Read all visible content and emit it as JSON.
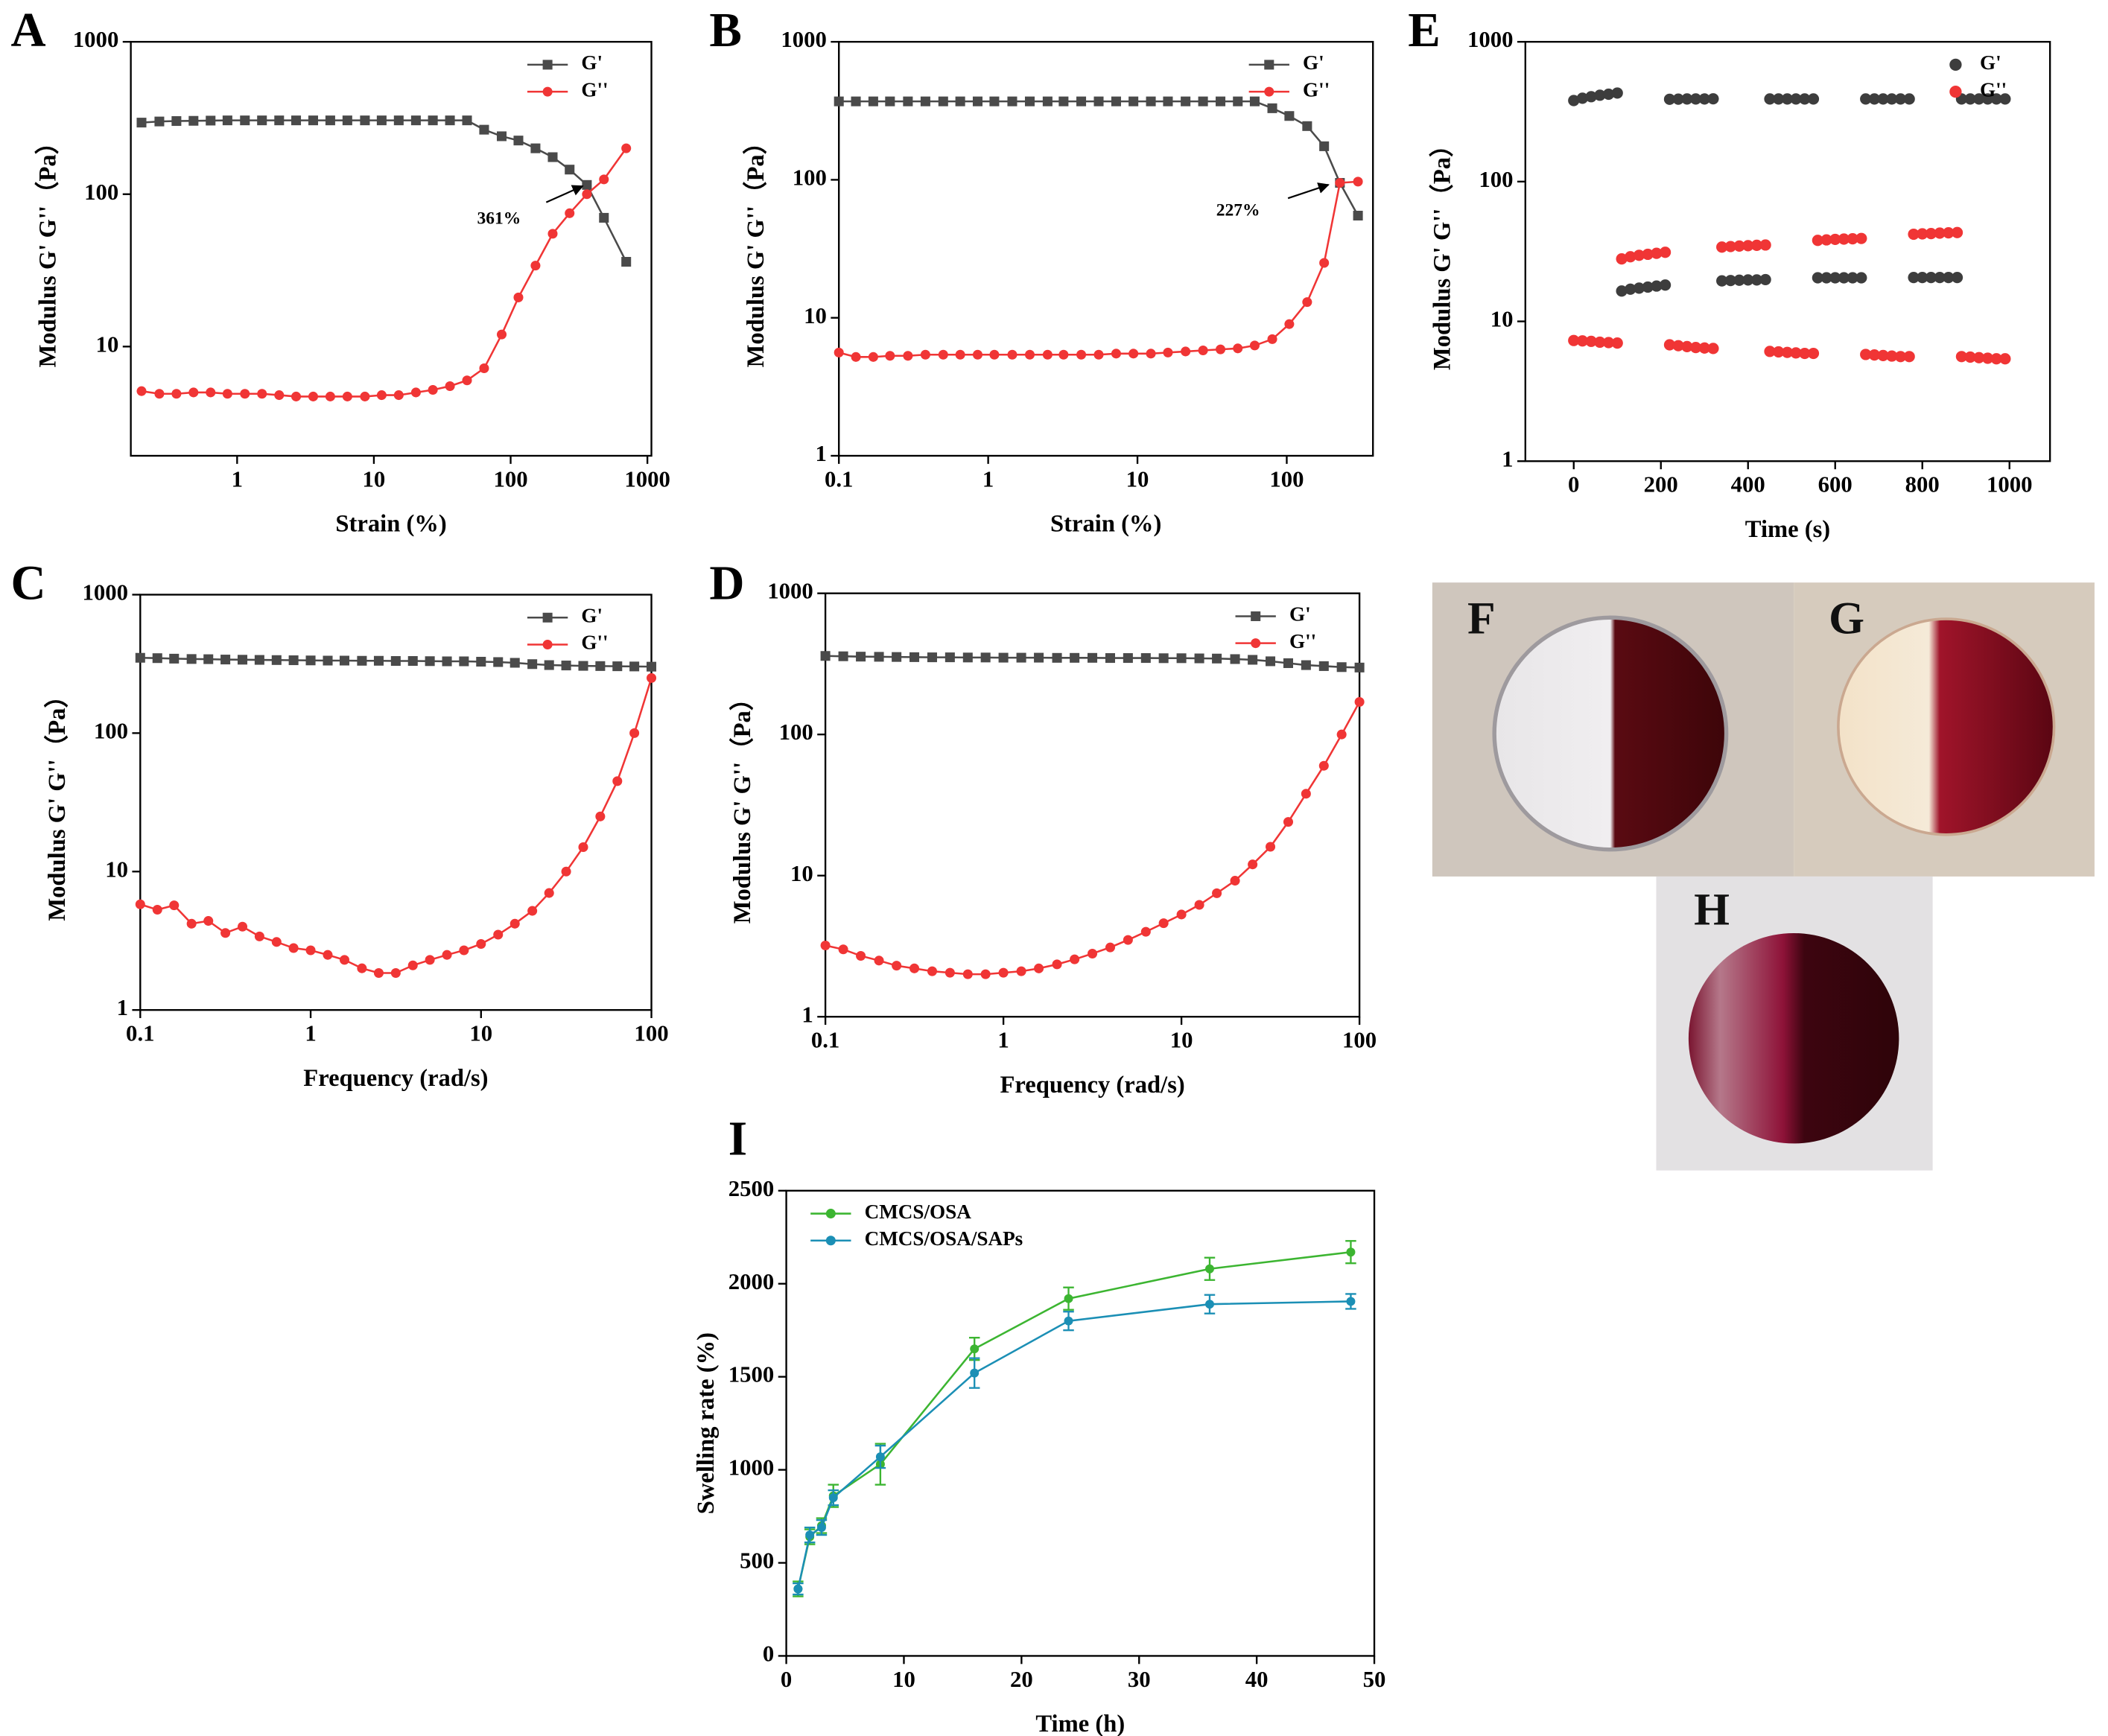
{
  "chart_data": [
    {
      "type": "line",
      "panel_label": "A",
      "x_label": "Strain (%)",
      "y_label": "Modulus G' G''（Pa）",
      "xscale": "log",
      "yscale": "log",
      "xlim": [
        0.167,
        1070
      ],
      "ylim": [
        1.92,
        1000
      ],
      "xticks": [
        1,
        10,
        100,
        1000
      ],
      "yticks": [
        10,
        100,
        1000
      ],
      "legend": "upper right",
      "x": [
        0.2,
        0.27,
        0.36,
        0.48,
        0.64,
        0.85,
        1.14,
        1.52,
        2.03,
        2.7,
        3.6,
        4.8,
        6.4,
        8.6,
        11.4,
        15.2,
        20.3,
        27,
        36,
        48,
        64,
        86,
        114,
        152,
        203,
        270,
        361,
        481,
        700
      ],
      "series": [
        {
          "name": "G'",
          "color": "#4a4a4a",
          "marker": "square",
          "values": [
            295,
            300,
            302,
            303,
            304,
            305,
            305,
            305,
            305,
            305,
            305,
            305,
            305,
            305,
            305,
            305,
            305,
            305,
            305,
            305,
            265,
            240,
            225,
            200,
            175,
            145,
            115,
            70,
            36
          ]
        },
        {
          "name": "G''",
          "color": "#f03535",
          "marker": "circle",
          "values": [
            5.1,
            4.9,
            4.9,
            5.0,
            5.0,
            4.9,
            4.9,
            4.9,
            4.8,
            4.7,
            4.7,
            4.7,
            4.7,
            4.7,
            4.8,
            4.8,
            5.0,
            5.2,
            5.5,
            6.0,
            7.2,
            12,
            21,
            34,
            55,
            75,
            100,
            125,
            200
          ]
        }
      ],
      "annotations": [
        {
          "text": "361%"
        }
      ]
    },
    {
      "type": "line",
      "panel_label": "B",
      "x_label": "Strain (%)",
      "y_label": "Modulus G' G''（Pa）",
      "xscale": "log",
      "yscale": "log",
      "xlim": [
        0.1,
        378
      ],
      "ylim": [
        1,
        1000
      ],
      "xticks": [
        0.1,
        1,
        10,
        100
      ],
      "yticks": [
        1,
        10,
        100,
        1000
      ],
      "legend": "upper right",
      "x": [
        0.1,
        0.13,
        0.17,
        0.22,
        0.29,
        0.38,
        0.5,
        0.65,
        0.85,
        1.1,
        1.45,
        1.9,
        2.5,
        3.2,
        4.2,
        5.5,
        7.2,
        9.4,
        12.3,
        16,
        21,
        27.5,
        36,
        47,
        61,
        80,
        104,
        137,
        178,
        227,
        300
      ],
      "series": [
        {
          "name": "G'",
          "color": "#4a4a4a",
          "marker": "square",
          "values": [
            370,
            370,
            370,
            370,
            370,
            370,
            370,
            370,
            370,
            370,
            370,
            370,
            370,
            370,
            370,
            370,
            370,
            370,
            370,
            370,
            370,
            370,
            370,
            370,
            370,
            330,
            290,
            245,
            175,
            95,
            55
          ]
        },
        {
          "name": "G''",
          "color": "#f03535",
          "marker": "circle",
          "values": [
            5.6,
            5.2,
            5.2,
            5.3,
            5.3,
            5.4,
            5.4,
            5.4,
            5.4,
            5.4,
            5.4,
            5.4,
            5.4,
            5.4,
            5.4,
            5.4,
            5.5,
            5.5,
            5.5,
            5.6,
            5.7,
            5.8,
            5.9,
            6.0,
            6.3,
            7.0,
            9.0,
            13,
            25,
            95,
            97
          ]
        }
      ],
      "annotations": [
        {
          "text": "227%"
        }
      ]
    },
    {
      "type": "scatter",
      "panel_label": "E",
      "x_label": "Time (s)",
      "y_label": "Modulus G' G''（Pa）",
      "xscale": "linear",
      "yscale": "log",
      "xlim": [
        -111,
        1093
      ],
      "ylim": [
        1,
        1000
      ],
      "xticks": [
        0,
        200,
        400,
        600,
        800,
        1000
      ],
      "yticks": [
        1,
        10,
        100,
        1000
      ],
      "legend": "upper right",
      "series": [
        {
          "name": "G'",
          "color": "#3d3d3d",
          "x": [
            0,
            20,
            40,
            60,
            80,
            100,
            110,
            130,
            150,
            170,
            190,
            210,
            220,
            240,
            260,
            280,
            300,
            320,
            340,
            360,
            380,
            400,
            420,
            440,
            450,
            470,
            490,
            510,
            530,
            550,
            560,
            580,
            600,
            620,
            640,
            660,
            670,
            690,
            710,
            730,
            750,
            770,
            780,
            800,
            820,
            840,
            860,
            880,
            890,
            910,
            930,
            950,
            970,
            990
          ],
          "values": [
            380,
            395,
            405,
            415,
            422,
            430,
            16.5,
            17,
            17.3,
            17.6,
            17.9,
            18.2,
            388,
            389,
            390,
            390,
            390,
            391,
            19.5,
            19.6,
            19.7,
            19.8,
            19.8,
            19.9,
            390,
            390,
            390,
            390,
            390,
            390,
            20.5,
            20.5,
            20.5,
            20.5,
            20.5,
            20.5,
            390,
            390,
            390,
            390,
            390,
            390,
            20.6,
            20.6,
            20.6,
            20.6,
            20.6,
            20.6,
            390,
            390,
            390,
            390,
            390,
            390
          ]
        },
        {
          "name": "G''",
          "color": "#f03535",
          "x": [
            0,
            20,
            40,
            60,
            80,
            100,
            110,
            130,
            150,
            170,
            190,
            210,
            220,
            240,
            260,
            280,
            300,
            320,
            340,
            360,
            380,
            400,
            420,
            440,
            450,
            470,
            490,
            510,
            530,
            550,
            560,
            580,
            600,
            620,
            640,
            660,
            670,
            690,
            710,
            730,
            750,
            770,
            780,
            800,
            820,
            840,
            860,
            880,
            890,
            910,
            930,
            950,
            970,
            990
          ],
          "values": [
            7.3,
            7.25,
            7.2,
            7.1,
            7.05,
            7.0,
            28,
            29,
            29.7,
            30.2,
            30.7,
            31.2,
            6.8,
            6.7,
            6.6,
            6.5,
            6.45,
            6.4,
            34,
            34.3,
            34.6,
            34.8,
            35,
            35.2,
            6.1,
            6.05,
            6.0,
            5.95,
            5.9,
            5.9,
            38,
            38.3,
            38.6,
            38.8,
            39,
            39.2,
            5.8,
            5.75,
            5.7,
            5.65,
            5.6,
            5.6,
            42,
            42.3,
            42.5,
            42.8,
            43,
            43.2,
            5.6,
            5.55,
            5.5,
            5.45,
            5.4,
            5.4
          ]
        }
      ]
    },
    {
      "type": "line",
      "panel_label": "C",
      "x_label": "Frequency (rad/s)",
      "y_label": "Modulus G' G''（Pa）",
      "xscale": "log",
      "yscale": "log",
      "xlim": [
        0.1,
        100
      ],
      "ylim": [
        1,
        1000
      ],
      "xticks": [
        0.1,
        1,
        10,
        100
      ],
      "yticks": [
        1,
        10,
        100,
        1000
      ],
      "legend": "upper right",
      "x": [
        0.1,
        0.126,
        0.158,
        0.2,
        0.251,
        0.316,
        0.398,
        0.501,
        0.631,
        0.794,
        1,
        1.26,
        1.58,
        2,
        2.51,
        3.16,
        3.98,
        5.01,
        6.31,
        7.94,
        10,
        12.6,
        15.8,
        20,
        25.1,
        31.6,
        39.8,
        50.1,
        63.1,
        79.4,
        100
      ],
      "series": [
        {
          "name": "G'",
          "color": "#4a4a4a",
          "marker": "square",
          "values": [
            350,
            348,
            345,
            343,
            342,
            340,
            339,
            338,
            337,
            336,
            335,
            334,
            334,
            333,
            333,
            332,
            332,
            331,
            330,
            330,
            328,
            326,
            322,
            315,
            310,
            308,
            306,
            305,
            304,
            303,
            302
          ]
        },
        {
          "name": "G''",
          "color": "#f03535",
          "marker": "circle",
          "values": [
            5.8,
            5.3,
            5.7,
            4.2,
            4.4,
            3.6,
            4.0,
            3.4,
            3.1,
            2.8,
            2.7,
            2.5,
            2.3,
            2.0,
            1.85,
            1.85,
            2.1,
            2.3,
            2.5,
            2.7,
            3.0,
            3.5,
            4.2,
            5.2,
            7,
            10,
            15,
            25,
            45,
            100,
            250
          ]
        }
      ]
    },
    {
      "type": "line",
      "panel_label": "D",
      "x_label": "Frequency (rad/s)",
      "y_label": "Modulus G' G''（Pa）",
      "xscale": "log",
      "yscale": "log",
      "xlim": [
        0.1,
        100
      ],
      "ylim": [
        1,
        1000
      ],
      "xticks": [
        0.1,
        1,
        10,
        100
      ],
      "yticks": [
        1,
        10,
        100,
        1000
      ],
      "legend": "upper right",
      "x": [
        0.1,
        0.126,
        0.158,
        0.2,
        0.251,
        0.316,
        0.398,
        0.501,
        0.631,
        0.794,
        1,
        1.26,
        1.58,
        2,
        2.51,
        3.16,
        3.98,
        5.01,
        6.31,
        7.94,
        10,
        12.6,
        15.8,
        20,
        25.1,
        31.6,
        39.8,
        50.1,
        63.1,
        79.4,
        100
      ],
      "series": [
        {
          "name": "G'",
          "color": "#4a4a4a",
          "marker": "square",
          "values": [
            360,
            358,
            356,
            355,
            354,
            353,
            352,
            352,
            351,
            351,
            350,
            350,
            350,
            349,
            349,
            349,
            348,
            348,
            348,
            347,
            347,
            346,
            345,
            342,
            338,
            330,
            320,
            310,
            305,
            300,
            298
          ]
        },
        {
          "name": "G''",
          "color": "#f03535",
          "marker": "circle",
          "values": [
            3.2,
            3.0,
            2.7,
            2.5,
            2.3,
            2.2,
            2.1,
            2.05,
            2.0,
            2.0,
            2.05,
            2.1,
            2.2,
            2.35,
            2.55,
            2.8,
            3.1,
            3.5,
            4.0,
            4.6,
            5.3,
            6.2,
            7.5,
            9.2,
            12,
            16,
            24,
            38,
            60,
            100,
            170
          ]
        }
      ]
    },
    {
      "type": "line",
      "panel_label": "I",
      "x_label": "Time (h)",
      "y_label": "Swelling rate (%)",
      "xscale": "linear",
      "yscale": "linear",
      "xlim": [
        0,
        50
      ],
      "ylim": [
        0,
        2500
      ],
      "xticks": [
        0,
        10,
        20,
        30,
        40,
        50
      ],
      "yticks": [
        0,
        500,
        1000,
        1500,
        2000,
        2500
      ],
      "legend": "upper left",
      "x": [
        1,
        2,
        3,
        4,
        8,
        16,
        24,
        36,
        48
      ],
      "series": [
        {
          "name": "CMCS/OSA",
          "color": "#3cb531",
          "marker": "circle",
          "values": [
            360,
            640,
            700,
            860,
            1030,
            1650,
            1920,
            2080,
            2170
          ],
          "errors": [
            40,
            40,
            40,
            60,
            110,
            60,
            60,
            60,
            60
          ]
        },
        {
          "name": "CMCS/OSA/SAPs",
          "color": "#1b8fb5",
          "marker": "circle",
          "values": [
            360,
            650,
            690,
            850,
            1070,
            1520,
            1800,
            1890,
            1905
          ],
          "errors": [
            30,
            40,
            40,
            40,
            60,
            80,
            50,
            50,
            40
          ]
        }
      ]
    }
  ],
  "photos": [
    {
      "label": "F"
    },
    {
      "label": "G"
    },
    {
      "label": "H"
    }
  ]
}
